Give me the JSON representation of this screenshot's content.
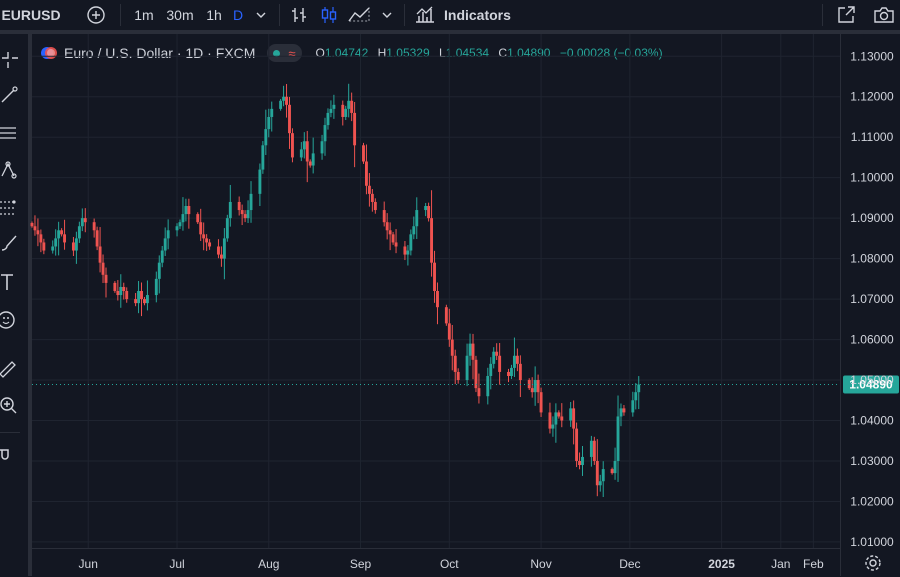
{
  "toolbar": {
    "symbol": "EURUSD",
    "intervals": [
      "1m",
      "30m",
      "1h",
      "D"
    ],
    "indicators_label": "Indicators"
  },
  "legend": {
    "title": "Euro / U.S. Dollar · 1D · FXCM",
    "o_label": "O",
    "o": "1.04742",
    "h_label": "H",
    "h": "1.05329",
    "l_label": "L",
    "l": "1.04534",
    "c_label": "C",
    "c": "1.04890",
    "change": "−0.00028 (−0.03%)"
  },
  "colors": {
    "up": "#26a69a",
    "down": "#ef5350",
    "background": "#131722",
    "grid": "#1f2430",
    "accent": "#2962ff"
  },
  "left_tools": [
    "crosshair-icon",
    "trend-line-icon",
    "fib-icon",
    "pattern-icon",
    "projection-icon",
    "brush-icon",
    "text-icon",
    "emoji-icon",
    "ruler-icon",
    "zoom-icon",
    "magnet-icon"
  ],
  "chart_data": {
    "type": "candlestick",
    "title": "Euro / U.S. Dollar · 1D · FXCM",
    "y_ticks": [
      "1.13000",
      "1.12000",
      "1.11000",
      "1.10000",
      "1.09000",
      "1.08000",
      "1.07000",
      "1.06000",
      "1.05000",
      "1.04000",
      "1.03000",
      "1.02000",
      "1.01000"
    ],
    "ylim": [
      1.0085,
      1.1355
    ],
    "x_ticks": [
      "Jun",
      "Jul",
      "Aug",
      "Sep",
      "Oct",
      "Nov",
      "Dec",
      "2025",
      "Jan",
      "Feb"
    ],
    "x_tick_dates": [
      "2024-06-01",
      "2024-07-01",
      "2024-08-01",
      "2024-09-01",
      "2024-10-01",
      "2024-11-01",
      "2024-12-01",
      "2025-01-01",
      "2025-01-21",
      "2025-02-01"
    ],
    "x_range": [
      "2024-05-13",
      "2025-02-10"
    ],
    "last_price": "1.04890",
    "last_price_value": 1.0489,
    "close_series": {
      "start": "2024-05-13",
      "end": "2025-01-24",
      "values": [
        1.088,
        1.087,
        1.086,
        1.084,
        1.082,
        1.083,
        1.085,
        1.087,
        1.086,
        1.084,
        1.082,
        1.085,
        1.088,
        1.09,
        1.089,
        1.087,
        1.083,
        1.079,
        1.076,
        1.074,
        1.072,
        1.071,
        1.073,
        1.072,
        1.07,
        1.069,
        1.072,
        1.07,
        1.069,
        1.071,
        1.075,
        1.079,
        1.082,
        1.085,
        1.087,
        1.088,
        1.089,
        1.091,
        1.093,
        1.091,
        1.089,
        1.086,
        1.085,
        1.084,
        1.083,
        1.081,
        1.08,
        1.085,
        1.09,
        1.094,
        1.092,
        1.091,
        1.09,
        1.092,
        1.096,
        1.102,
        1.108,
        1.112,
        1.115,
        1.117,
        1.119,
        1.12,
        1.118,
        1.111,
        1.105,
        1.107,
        1.109,
        1.104,
        1.103,
        1.106,
        1.109,
        1.113,
        1.116,
        1.117,
        1.118,
        1.115,
        1.117,
        1.119,
        1.116,
        1.108,
        1.104,
        1.098,
        1.096,
        1.094,
        1.092,
        1.089,
        1.087,
        1.086,
        1.084,
        1.083,
        1.081,
        1.082,
        1.086,
        1.088,
        1.092,
        1.093,
        1.09,
        1.079,
        1.072,
        1.068,
        1.064,
        1.06,
        1.056,
        1.052,
        1.05,
        1.056,
        1.059,
        1.055,
        1.048,
        1.046,
        1.051,
        1.054,
        1.057,
        1.056,
        1.052,
        1.051,
        1.053,
        1.056,
        1.054,
        1.05,
        1.048,
        1.047,
        1.05,
        1.047,
        1.042,
        1.038,
        1.039,
        1.042,
        1.041,
        1.04,
        1.043,
        1.038,
        1.03,
        1.029,
        1.031,
        1.035,
        1.03,
        1.024,
        1.025,
        1.028,
        1.027,
        1.03,
        1.041,
        1.043,
        1.042,
        1.045,
        1.047,
        1.0489
      ]
    }
  },
  "bottom_right_icon": "settings-icon"
}
